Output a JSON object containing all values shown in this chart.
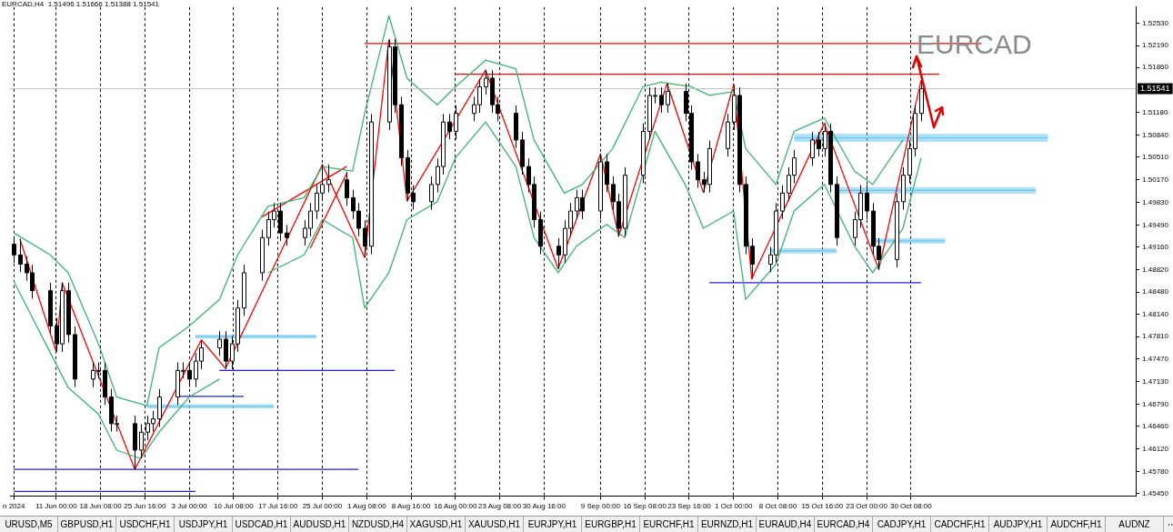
{
  "chart_data": {
    "type": "candlestick",
    "title": "EURCAD,H4  1.51496 1.51666 1.51388 1.51541",
    "color": "#000000",
    "x": [
      "2024-06-04",
      "2024-06-05",
      "2024-06-06",
      "2024-06-07",
      "2024-06-10",
      "2024-06-11",
      "2024-06-12",
      "2024-06-13",
      "2024-06-14",
      "2024-06-17",
      "2024-06-18",
      "2024-06-19",
      "2024-06-20",
      "2024-06-21",
      "2024-06-24",
      "2024-06-25",
      "2024-06-26",
      "2024-06-27",
      "2024-06-28",
      "2024-07-01",
      "2024-07-02",
      "2024-07-03",
      "2024-07-04",
      "2024-07-05",
      "2024-07-08",
      "2024-07-09",
      "2024-07-10",
      "2024-07-11",
      "2024-07-12",
      "2024-07-15",
      "2024-07-16",
      "2024-07-17",
      "2024-07-18",
      "2024-07-19",
      "2024-07-22",
      "2024-07-23",
      "2024-07-24",
      "2024-07-25",
      "2024-07-26",
      "2024-07-29",
      "2024-07-30",
      "2024-07-31",
      "2024-08-01",
      "2024-08-02",
      "2024-08-05",
      "2024-08-06",
      "2024-08-07",
      "2024-08-08",
      "2024-08-09",
      "2024-08-12",
      "2024-08-13",
      "2024-08-14",
      "2024-08-15",
      "2024-08-16",
      "2024-08-19",
      "2024-08-20",
      "2024-08-21",
      "2024-08-22",
      "2024-08-23",
      "2024-08-26",
      "2024-08-27",
      "2024-08-28",
      "2024-08-29",
      "2024-08-30",
      "2024-09-02",
      "2024-09-03",
      "2024-09-04",
      "2024-09-05",
      "2024-09-06",
      "2024-09-09",
      "2024-09-10",
      "2024-09-11",
      "2024-09-12",
      "2024-09-13",
      "2024-09-16",
      "2024-09-17",
      "2024-09-18",
      "2024-09-19",
      "2024-09-20",
      "2024-09-23",
      "2024-09-24",
      "2024-09-25",
      "2024-09-26",
      "2024-09-27",
      "2024-09-30",
      "2024-10-01",
      "2024-10-02",
      "2024-10-03",
      "2024-10-04",
      "2024-10-07",
      "2024-10-08",
      "2024-10-09",
      "2024-10-10",
      "2024-10-11",
      "2024-10-14",
      "2024-10-15",
      "2024-10-16",
      "2024-10-17",
      "2024-10-18",
      "2024-10-21",
      "2024-10-22",
      "2024-10-23",
      "2024-10-24",
      "2024-10-25",
      "2024-10-28",
      "2024-10-29",
      "2024-10-30",
      "2024-10-31",
      "2024-11-01"
    ],
    "ohlc": [
      [
        1.492,
        1.4932,
        1.4892,
        1.4904
      ],
      [
        1.4904,
        1.4928,
        1.4878,
        1.489
      ],
      [
        1.489,
        1.4902,
        1.4865,
        1.4877
      ],
      [
        1.4877,
        1.4889,
        1.4838,
        1.485
      ],
      [
        1.485,
        1.4862,
        1.4785,
        1.4797
      ],
      [
        1.4797,
        1.4809,
        1.4758,
        1.477
      ],
      [
        1.477,
        1.4862,
        1.4758,
        1.485
      ],
      [
        1.485,
        1.4862,
        1.4772,
        1.4784
      ],
      [
        1.4784,
        1.4796,
        1.4705,
        1.4717
      ],
      [
        1.4717,
        1.4742,
        1.4705,
        1.473
      ],
      [
        1.473,
        1.4742,
        1.4718,
        1.473
      ],
      [
        1.473,
        1.4742,
        1.4678,
        1.469
      ],
      [
        1.469,
        1.4702,
        1.4638,
        1.465
      ],
      [
        1.465,
        1.4662,
        1.4638,
        1.465
      ],
      [
        1.465,
        1.4662,
        1.4581,
        1.461
      ],
      [
        1.461,
        1.4649,
        1.4598,
        1.4637
      ],
      [
        1.4637,
        1.4662,
        1.4625,
        1.465
      ],
      [
        1.465,
        1.4669,
        1.4638,
        1.4657
      ],
      [
        1.4657,
        1.4702,
        1.4645,
        1.469
      ],
      [
        1.469,
        1.4742,
        1.4678,
        1.473
      ],
      [
        1.473,
        1.4742,
        1.4718,
        1.473
      ],
      [
        1.473,
        1.4742,
        1.4705,
        1.4717
      ],
      [
        1.4717,
        1.4756,
        1.4705,
        1.4744
      ],
      [
        1.4744,
        1.4776,
        1.4732,
        1.4764
      ],
      [
        1.4764,
        1.4789,
        1.4752,
        1.4777
      ],
      [
        1.4777,
        1.4789,
        1.4732,
        1.4744
      ],
      [
        1.4744,
        1.4782,
        1.4732,
        1.477
      ],
      [
        1.477,
        1.4836,
        1.4758,
        1.4824
      ],
      [
        1.4824,
        1.4889,
        1.4812,
        1.4877
      ],
      [
        1.4877,
        1.4942,
        1.4865,
        1.493
      ],
      [
        1.493,
        1.4969,
        1.4918,
        1.4957
      ],
      [
        1.4957,
        1.4982,
        1.4945,
        1.497
      ],
      [
        1.497,
        1.4982,
        1.4925,
        1.4937
      ],
      [
        1.4937,
        1.4949,
        1.4918,
        1.493
      ],
      [
        1.493,
        1.4956,
        1.4918,
        1.4944
      ],
      [
        1.4944,
        1.4982,
        1.4932,
        1.497
      ],
      [
        1.497,
        1.5009,
        1.4958,
        1.4997
      ],
      [
        1.4997,
        1.504,
        1.4985,
        1.501
      ],
      [
        1.501,
        1.504,
        1.4998,
        1.5017
      ],
      [
        1.5017,
        1.5029,
        1.4978,
        1.499
      ],
      [
        1.499,
        1.5002,
        1.4958,
        1.497
      ],
      [
        1.497,
        1.4982,
        1.4932,
        1.4944
      ],
      [
        1.4944,
        1.4956,
        1.49,
        1.4917
      ],
      [
        1.4917,
        1.5116,
        1.4905,
        1.5104
      ],
      [
        1.5104,
        1.5228,
        1.5092,
        1.5217
      ],
      [
        1.5217,
        1.5229,
        1.5118,
        1.513
      ],
      [
        1.513,
        1.5142,
        1.5038,
        1.505
      ],
      [
        1.505,
        1.5062,
        1.4985,
        1.4997
      ],
      [
        1.4997,
        1.5009,
        1.4972,
        1.4984
      ],
      [
        1.4984,
        1.5022,
        1.4972,
        1.501
      ],
      [
        1.501,
        1.5049,
        1.4998,
        1.5037
      ],
      [
        1.5037,
        1.5116,
        1.5025,
        1.5104
      ],
      [
        1.5104,
        1.5116,
        1.5078,
        1.509
      ],
      [
        1.509,
        1.5129,
        1.5078,
        1.5117
      ],
      [
        1.5117,
        1.5142,
        1.5105,
        1.513
      ],
      [
        1.513,
        1.5169,
        1.5118,
        1.5157
      ],
      [
        1.5157,
        1.5182,
        1.5145,
        1.517
      ],
      [
        1.517,
        1.5182,
        1.5118,
        1.513
      ],
      [
        1.513,
        1.5142,
        1.5105,
        1.5117
      ],
      [
        1.5117,
        1.5129,
        1.5065,
        1.5077
      ],
      [
        1.5077,
        1.5089,
        1.5025,
        1.5037
      ],
      [
        1.5037,
        1.5049,
        1.4998,
        1.501
      ],
      [
        1.501,
        1.5022,
        1.4945,
        1.4957
      ],
      [
        1.4957,
        1.4969,
        1.4905,
        1.4917
      ],
      [
        1.4917,
        1.4929,
        1.4883,
        1.4904
      ],
      [
        1.4904,
        1.4956,
        1.4892,
        1.4944
      ],
      [
        1.4944,
        1.4982,
        1.4932,
        1.497
      ],
      [
        1.497,
        1.5002,
        1.4958,
        1.499
      ],
      [
        1.499,
        1.5002,
        1.4958,
        1.497
      ],
      [
        1.497,
        1.5056,
        1.4958,
        1.5044
      ],
      [
        1.5044,
        1.5056,
        1.4998,
        1.501
      ],
      [
        1.501,
        1.5022,
        1.4972,
        1.4984
      ],
      [
        1.4984,
        1.4996,
        1.4932,
        1.4944
      ],
      [
        1.4944,
        1.5036,
        1.4932,
        1.5024
      ],
      [
        1.5024,
        1.5102,
        1.5012,
        1.509
      ],
      [
        1.509,
        1.5156,
        1.5078,
        1.5144
      ],
      [
        1.5144,
        1.5156,
        1.5132,
        1.5144
      ],
      [
        1.5144,
        1.5156,
        1.5118,
        1.513
      ],
      [
        1.513,
        1.5162,
        1.5118,
        1.515
      ],
      [
        1.515,
        1.5162,
        1.5105,
        1.5117
      ],
      [
        1.5117,
        1.5129,
        1.5032,
        1.5044
      ],
      [
        1.5044,
        1.5056,
        1.5005,
        1.5017
      ],
      [
        1.5017,
        1.5029,
        1.4998,
        1.501
      ],
      [
        1.501,
        1.5076,
        1.4998,
        1.5064
      ],
      [
        1.5064,
        1.5116,
        1.5052,
        1.5104
      ],
      [
        1.5104,
        1.516,
        1.5092,
        1.5144
      ],
      [
        1.5144,
        1.5156,
        1.4998,
        1.501
      ],
      [
        1.501,
        1.5022,
        1.4905,
        1.4917
      ],
      [
        1.4917,
        1.4929,
        1.4868,
        1.489
      ],
      [
        1.489,
        1.4916,
        1.4878,
        1.4904
      ],
      [
        1.4904,
        1.4982,
        1.4892,
        1.497
      ],
      [
        1.497,
        1.5009,
        1.4958,
        1.4997
      ],
      [
        1.4997,
        1.5036,
        1.4985,
        1.5024
      ],
      [
        1.5024,
        1.5062,
        1.5012,
        1.505
      ],
      [
        1.505,
        1.5089,
        1.5038,
        1.5077
      ],
      [
        1.5077,
        1.5089,
        1.5052,
        1.5064
      ],
      [
        1.5064,
        1.5102,
        1.5052,
        1.509
      ],
      [
        1.509,
        1.5102,
        1.4998,
        1.501
      ],
      [
        1.501,
        1.5022,
        1.4918,
        1.493
      ],
      [
        1.493,
        1.4969,
        1.4918,
        1.4957
      ],
      [
        1.4957,
        1.5009,
        1.4945,
        1.4997
      ],
      [
        1.4997,
        1.5009,
        1.4958,
        1.497
      ],
      [
        1.497,
        1.4982,
        1.4905,
        1.4917
      ],
      [
        1.4917,
        1.4929,
        1.4882,
        1.4897
      ],
      [
        1.4897,
        1.4996,
        1.4885,
        1.4984
      ],
      [
        1.4984,
        1.5036,
        1.4972,
        1.5024
      ],
      [
        1.5024,
        1.5076,
        1.5012,
        1.5064
      ],
      [
        1.5064,
        1.5129,
        1.5052,
        1.5117
      ],
      [
        1.5117,
        1.5167,
        1.5105,
        1.51541
      ]
    ],
    "colors": [
      "#000000",
      "#000000",
      "#000000",
      "#000000",
      "#000000",
      "#000000",
      "#ffffff",
      "#000000",
      "#000000",
      "#ffffff",
      "#ffffff",
      "#000000",
      "#000000",
      "#ffffff",
      "#000000",
      "#ffffff",
      "#ffffff",
      "#ffffff",
      "#ffffff",
      "#ffffff",
      "#ffffff",
      "#000000",
      "#ffffff",
      "#ffffff",
      "#ffffff",
      "#000000",
      "#ffffff",
      "#ffffff",
      "#ffffff",
      "#ffffff",
      "#ffffff",
      "#ffffff",
      "#000000",
      "#000000",
      "#ffffff",
      "#ffffff",
      "#ffffff",
      "#ffffff",
      "#ffffff",
      "#000000",
      "#000000",
      "#000000",
      "#000000",
      "#ffffff",
      "#ffffff",
      "#000000",
      "#000000",
      "#000000",
      "#000000",
      "#ffffff",
      "#ffffff",
      "#ffffff",
      "#000000",
      "#ffffff",
      "#ffffff",
      "#ffffff",
      "#ffffff",
      "#000000",
      "#000000",
      "#000000",
      "#000000",
      "#000000",
      "#000000",
      "#000000",
      "#000000",
      "#ffffff",
      "#ffffff",
      "#ffffff",
      "#000000",
      "#ffffff",
      "#000000",
      "#000000",
      "#000000",
      "#ffffff",
      "#ffffff",
      "#ffffff",
      "#ffffff",
      "#000000",
      "#ffffff",
      "#000000",
      "#000000",
      "#000000",
      "#000000",
      "#ffffff",
      "#ffffff",
      "#ffffff",
      "#000000",
      "#000000",
      "#000000",
      "#ffffff",
      "#ffffff",
      "#ffffff",
      "#ffffff",
      "#ffffff",
      "#ffffff",
      "#000000",
      "#ffffff",
      "#000000",
      "#000000",
      "#ffffff",
      "#ffffff",
      "#000000",
      "#000000",
      "#000000",
      "#ffffff",
      "#ffffff",
      "#ffffff",
      "#ffffff",
      "#ffffff"
    ],
    "xlim": [
      "2024-06-04",
      "2024-12-06"
    ],
    "xticks": [
      {
        "value": "2024-06-04",
        "label": "n 2024"
      },
      {
        "value": "2024-06-11T00:00",
        "label": "11 Jun 00:00"
      },
      {
        "value": "2024-06-18T08:00",
        "label": "18 Jun 08:00"
      },
      {
        "value": "2024-06-25T16:00",
        "label": "25 Jun 16:00"
      },
      {
        "value": "2024-07-03T00:00",
        "label": "3 Jul 00:00"
      },
      {
        "value": "2024-07-10T08:00",
        "label": "10 Jul 08:00"
      },
      {
        "value": "2024-07-17T16:00",
        "label": "17 Jul 16:00"
      },
      {
        "value": "2024-07-25T00:00",
        "label": "25 Jul 00:00"
      },
      {
        "value": "2024-08-01T08:00",
        "label": "1 Aug 08:00"
      },
      {
        "value": "2024-08-08T16:00",
        "label": "8 Aug 16:00"
      },
      {
        "value": "2024-08-16T00:00",
        "label": "16 Aug 00:00"
      },
      {
        "value": "2024-08-23T08:00",
        "label": "23 Aug 08:00"
      },
      {
        "value": "2024-08-30T16:00",
        "label": "30 Aug 16:00"
      },
      {
        "value": "2024-09-09T00:00",
        "label": "9 Sep 00:00"
      },
      {
        "value": "2024-09-16T08:00",
        "label": "16 Sep 08:00"
      },
      {
        "value": "2024-09-23T16:00",
        "label": "23 Sep 16:00"
      },
      {
        "value": "2024-10-01T00:00",
        "label": "1 Oct 00:00"
      },
      {
        "value": "2024-10-08T08:00",
        "label": "8 Oct 08:00"
      },
      {
        "value": "2024-10-15T16:00",
        "label": "15 Oct 16:00"
      },
      {
        "value": "2024-10-23T00:00",
        "label": "23 Oct 00:00"
      },
      {
        "value": "2024-10-30T08:00",
        "label": "30 Oct 08:00"
      }
    ],
    "ylim": [
      1.4541,
      1.5277
    ],
    "yticks": [
      {
        "value": 1.4545,
        "label": "1.45450"
      },
      {
        "value": 1.4578,
        "label": "1.45780"
      },
      {
        "value": 1.4612,
        "label": "1.46120"
      },
      {
        "value": 1.4646,
        "label": "1.46460"
      },
      {
        "value": 1.4679,
        "label": "1.46790"
      },
      {
        "value": 1.4713,
        "label": "1.47130"
      },
      {
        "value": 1.4747,
        "label": "1.47470"
      },
      {
        "value": 1.4781,
        "label": "1.47810"
      },
      {
        "value": 1.4814,
        "label": "1.48140"
      },
      {
        "value": 1.4848,
        "label": "1.48480"
      },
      {
        "value": 1.4882,
        "label": "1.48820"
      },
      {
        "value": 1.4916,
        "label": "1.49160"
      },
      {
        "value": 1.4949,
        "label": "1.49490"
      },
      {
        "value": 1.4983,
        "label": "1.49830"
      },
      {
        "value": 1.5017,
        "label": "1.50170"
      },
      {
        "value": 1.5051,
        "label": "1.50510"
      },
      {
        "value": 1.5084,
        "label": "1.50840"
      },
      {
        "value": 1.5118,
        "label": "1.51180"
      },
      {
        "value": 1.5186,
        "label": "1.51860"
      },
      {
        "value": 1.5219,
        "label": "1.52190"
      },
      {
        "value": 1.5253,
        "label": "1.52530"
      }
    ],
    "grid": "x",
    "ref_lines": [
      {
        "axis": "y",
        "value": 1.51541,
        "label": "1.51541",
        "color": "#c0c0c0"
      }
    ],
    "series": [
      {
        "type": "line",
        "color": "#3cb371",
        "x": [
          "2024-06-04",
          "2024-06-10",
          "2024-06-13",
          "2024-06-18",
          "2024-06-21",
          "2024-06-26",
          "2024-06-28",
          "2024-07-03",
          "2024-07-08",
          "2024-07-11",
          "2024-07-16",
          "2024-07-22",
          "2024-07-25",
          "2024-07-30",
          "2024-08-01",
          "2024-08-05",
          "2024-08-08",
          "2024-08-13",
          "2024-08-16",
          "2024-08-21",
          "2024-08-26",
          "2024-08-29",
          "2024-09-03",
          "2024-09-06",
          "2024-09-11",
          "2024-09-16",
          "2024-09-19",
          "2024-09-24",
          "2024-09-27",
          "2024-10-01",
          "2024-10-03",
          "2024-10-08",
          "2024-10-11",
          "2024-10-16",
          "2024-10-21",
          "2024-10-24",
          "2024-10-29"
        ],
        "values": [
          1.4937,
          1.4904,
          1.4877,
          1.477,
          1.469,
          1.4677,
          1.4764,
          1.4797,
          1.4837,
          1.4904,
          1.4977,
          1.499,
          1.5037,
          1.503,
          1.5117,
          1.5264,
          1.517,
          1.513,
          1.5157,
          1.5197,
          1.5184,
          1.5077,
          1.4997,
          1.501,
          1.5064,
          1.5157,
          1.5164,
          1.5157,
          1.5144,
          1.515,
          1.5064,
          1.501,
          1.509,
          1.511,
          1.503,
          1.501,
          1.5077
        ]
      },
      {
        "type": "line",
        "color": "#3cb371",
        "x": [
          "2024-06-04",
          "2024-06-10",
          "2024-06-13",
          "2024-06-18",
          "2024-06-21",
          "2024-06-25",
          "2024-06-28",
          "2024-07-03",
          "2024-07-08",
          "2024-07-11",
          "2024-07-16",
          "2024-07-22",
          "2024-07-25",
          "2024-07-30",
          "2024-08-01",
          "2024-08-05",
          "2024-08-08",
          "2024-08-13",
          "2024-08-16",
          "2024-08-21",
          "2024-08-26",
          "2024-08-29",
          "2024-09-02",
          "2024-09-05",
          "2024-09-10",
          "2024-09-13",
          "2024-09-18",
          "2024-09-23",
          "2024-09-26",
          "2024-10-01",
          "2024-10-03",
          "2024-10-08",
          "2024-10-11",
          "2024-10-16",
          "2024-10-21",
          "2024-10-24",
          "2024-10-29",
          "2024-11-01"
        ],
        "values": [
          1.4864,
          1.4757,
          1.4704,
          1.4664,
          1.461,
          1.4597,
          1.4637,
          1.469,
          1.4717,
          null,
          1.4877,
          1.4904,
          1.4957,
          1.493,
          1.4824,
          1.4877,
          1.4957,
          1.4984,
          1.505,
          1.5104,
          1.5037,
          1.493,
          1.4877,
          1.4917,
          1.495,
          1.493,
          1.509,
          1.501,
          1.4944,
          1.497,
          1.4837,
          1.489,
          1.497,
          1.501,
          1.4917,
          1.4877,
          1.4944,
          1.505
        ]
      },
      {
        "type": "line",
        "color": "#ff0000",
        "x": [
          "2024-06-05",
          "2024-06-11",
          "2024-06-12",
          "2024-06-24",
          "2024-07-05",
          "2024-07-09",
          "2024-07-25",
          "2024-08-01",
          "2024-08-05",
          "2024-08-08",
          "2024-08-21",
          "2024-09-02",
          "2024-09-09",
          "2024-09-12",
          "2024-09-20",
          "2024-09-26",
          "2024-10-01",
          "2024-10-04",
          "2024-10-16",
          "2024-10-25",
          "2024-11-01"
        ],
        "values": [
          1.4928,
          1.4758,
          1.4862,
          1.4581,
          1.4776,
          1.4733,
          1.504,
          1.49,
          1.5228,
          1.4985,
          1.5182,
          1.4883,
          1.5056,
          1.4932,
          1.5162,
          1.4998,
          1.516,
          1.4868,
          1.5102,
          1.4882,
          1.5167
        ]
      },
      {
        "type": "line",
        "color": "#ff0000",
        "x": [
          "2024-07-15",
          "2024-07-29"
        ],
        "values": [
          1.4961,
          1.5037
        ]
      },
      {
        "type": "line",
        "color": "#ff0000",
        "x": [
          "2024-07-23",
          "2024-07-29"
        ],
        "values": [
          1.4914,
          1.5026
        ]
      },
      {
        "type": "line",
        "color": "#ff0000",
        "x": [
          "2024-08-01",
          "2024-11-11"
        ],
        "values": [
          1.5222,
          1.5222
        ]
      },
      {
        "type": "line",
        "color": "#ff0000",
        "x": [
          "2024-08-16",
          "2024-11-04"
        ],
        "values": [
          1.5176,
          1.5176
        ]
      },
      {
        "type": "line",
        "color": "#6ec6f0",
        "x": [
          "2024-10-11",
          "2024-11-22"
        ],
        "values": [
          1.508,
          1.508
        ],
        "lower": [
          1.5074,
          1.5074
        ],
        "upper": [
          1.5086,
          1.5086
        ]
      },
      {
        "type": "line",
        "color": "#6ec6f0",
        "x": [
          "2024-10-18",
          "2024-11-20"
        ],
        "values": [
          1.5001,
          1.5001
        ],
        "lower": [
          1.4996,
          1.4996
        ],
        "upper": [
          1.5006,
          1.5006
        ]
      },
      {
        "type": "line",
        "color": "#6ec6f0",
        "x": [
          "2024-10-24",
          "2024-11-05"
        ],
        "values": [
          1.4925,
          1.4925
        ],
        "lower": [
          1.4921,
          1.4921
        ],
        "upper": [
          1.4929,
          1.4929
        ]
      },
      {
        "type": "line",
        "color": "#6ec6f0",
        "x": [
          "2024-10-07",
          "2024-10-18"
        ],
        "values": [
          1.491,
          1.491
        ],
        "lower": [
          1.4906,
          1.4906
        ],
        "upper": [
          1.4914,
          1.4914
        ]
      },
      {
        "type": "line",
        "color": "#6ec6f0",
        "x": [
          "2024-07-04",
          "2024-07-24"
        ],
        "values": [
          1.4781,
          1.4781
        ],
        "lower": [
          1.4778,
          1.4778
        ],
        "upper": [
          1.4784,
          1.4784
        ]
      },
      {
        "type": "line",
        "color": "#6ec6f0",
        "x": [
          "2024-06-26",
          "2024-07-17"
        ],
        "values": [
          1.4676,
          1.4676
        ],
        "lower": [
          1.4673,
          1.4673
        ],
        "upper": [
          1.4679,
          1.4679
        ]
      },
      {
        "type": "line",
        "color": "#2020e0",
        "x": [
          "2024-09-27",
          "2024-11-01"
        ],
        "values": [
          1.4862,
          1.4862
        ]
      },
      {
        "type": "line",
        "color": "#2020e0",
        "x": [
          "2024-07-08",
          "2024-08-06"
        ],
        "values": [
          1.473,
          1.473
        ]
      },
      {
        "type": "line",
        "color": "#2020e0",
        "x": [
          "2024-07-01",
          "2024-07-12"
        ],
        "values": [
          1.4691,
          1.4691
        ]
      },
      {
        "type": "line",
        "color": "#2020e0",
        "x": [
          "2024-06-04",
          "2024-07-31"
        ],
        "values": [
          1.4581,
          1.4581
        ]
      },
      {
        "type": "line",
        "color": "#2020e0",
        "x": [
          "2024-06-04",
          "2024-07-04"
        ],
        "values": [
          1.4548,
          1.4548
        ]
      }
    ],
    "annotations": [
      "EURCAD",
      "URUSD,M5",
      "GBPUSD,H1",
      "USDCHF,H1",
      "USDJPY,H1",
      "USDCAD,H1",
      "AUDUSD,H1",
      "NZDUSD,H4",
      "XAGUSD,H1",
      "XAUUSD,H1",
      "EURJPY,H1",
      "EURGBP,H1",
      "EURCHF,H1",
      "EURNZD,H1",
      "EURAUD,H4",
      "EURCAD,H4",
      "CADJPY,H1",
      "CADCHF,H1",
      "AUDJPY,H1",
      "AUDCHF,H1",
      "AUDNZ"
    ]
  }
}
